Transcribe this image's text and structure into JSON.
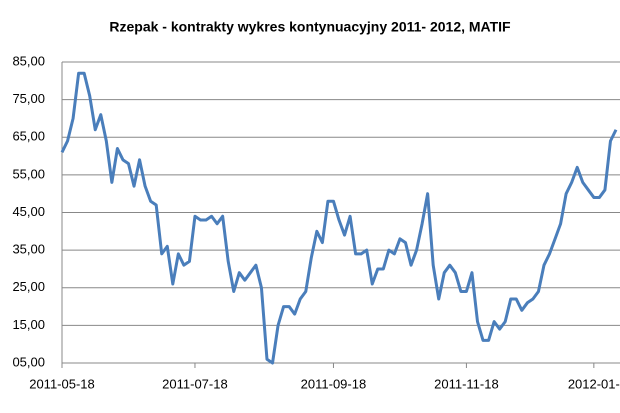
{
  "chart_data": {
    "type": "line",
    "title": "Rzepak - kontrakty wykres kontynuacyjny 2011- 2012,  MATIF",
    "categories": [
      "2011-05-18",
      null,
      null,
      null,
      null,
      null,
      null,
      null,
      null,
      null,
      null,
      null,
      null,
      null,
      null,
      null,
      null,
      null,
      null,
      null,
      null,
      null,
      null,
      null,
      "2011-07-18",
      null,
      null,
      null,
      null,
      null,
      null,
      null,
      null,
      null,
      null,
      null,
      null,
      null,
      null,
      null,
      null,
      null,
      null,
      null,
      null,
      null,
      null,
      null,
      null,
      "2011-09-18",
      null,
      null,
      null,
      null,
      null,
      null,
      null,
      null,
      null,
      null,
      null,
      null,
      null,
      null,
      null,
      null,
      null,
      null,
      null,
      null,
      null,
      null,
      null,
      "2011-11-18",
      null,
      null,
      null,
      null,
      null,
      null,
      null,
      null,
      null,
      null,
      null,
      null,
      null,
      null,
      null,
      null,
      null,
      null,
      null,
      null,
      null,
      null,
      "2012-01-",
      null,
      null,
      null,
      null
    ],
    "series": [
      {
        "name": "Rzepak",
        "color": "#4a7ebb",
        "values": [
          61,
          64,
          70,
          82,
          82,
          76,
          67,
          71,
          64,
          53,
          62,
          59,
          58,
          52,
          59,
          52,
          48,
          47,
          34,
          36,
          26,
          34,
          31,
          32,
          44,
          43,
          43,
          44,
          42,
          44,
          32,
          24,
          29,
          27,
          29,
          31,
          25,
          6,
          5,
          15,
          20,
          20,
          18,
          22,
          24,
          33,
          40,
          37,
          48,
          48,
          43,
          39,
          44,
          34,
          34,
          35,
          26,
          30,
          30,
          35,
          34,
          38,
          37,
          31,
          35,
          42,
          50,
          31,
          22,
          29,
          31,
          29,
          24,
          24,
          29,
          16,
          11,
          11,
          16,
          14,
          16,
          22,
          22,
          19,
          21,
          22,
          24,
          31,
          34,
          38,
          42,
          50,
          53,
          57,
          53,
          51,
          49,
          49,
          51,
          64,
          67
        ]
      }
    ],
    "ylim": [
      5,
      85
    ],
    "yticks": [
      {
        "value": 5,
        "label": "05,00"
      },
      {
        "value": 15,
        "label": "15,00"
      },
      {
        "value": 25,
        "label": "25,00"
      },
      {
        "value": 35,
        "label": "35,00"
      },
      {
        "value": 45,
        "label": "45,00"
      },
      {
        "value": 55,
        "label": "55,00"
      },
      {
        "value": 65,
        "label": "65,00"
      },
      {
        "value": 75,
        "label": "75,00"
      },
      {
        "value": 85,
        "label": "85,00"
      }
    ],
    "grid": true
  }
}
